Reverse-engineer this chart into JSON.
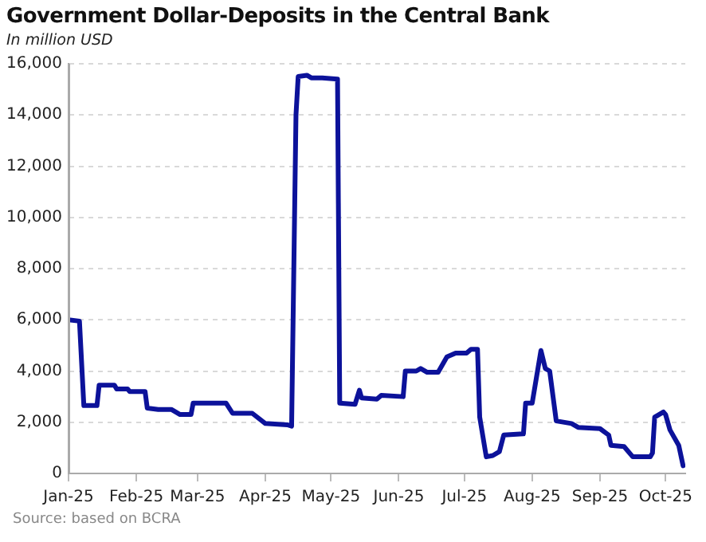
{
  "chart_data": {
    "type": "line",
    "title": "Government Dollar-Deposits in the Central Bank",
    "subtitle": "In million USD",
    "annotations": [
      "Source: based on BCRA"
    ],
    "x": [
      "2025-01-01",
      "2025-01-06",
      "2025-01-08",
      "2025-01-14",
      "2025-01-15",
      "2025-01-22",
      "2025-01-23",
      "2025-01-28",
      "2025-01-29",
      "2025-02-05",
      "2025-02-06",
      "2025-02-11",
      "2025-02-17",
      "2025-02-21",
      "2025-02-26",
      "2025-02-27",
      "2025-03-14",
      "2025-03-17",
      "2025-03-26",
      "2025-04-01",
      "2025-04-11",
      "2025-04-13",
      "2025-04-15",
      "2025-04-16",
      "2025-04-20",
      "2025-04-22",
      "2025-04-27",
      "2025-05-04",
      "2025-05-05",
      "2025-05-12",
      "2025-05-14",
      "2025-05-15",
      "2025-05-22",
      "2025-05-24",
      "2025-06-03",
      "2025-06-04",
      "2025-06-09",
      "2025-06-11",
      "2025-06-14",
      "2025-06-19",
      "2025-06-23",
      "2025-06-27",
      "2025-07-02",
      "2025-07-04",
      "2025-07-07",
      "2025-07-08",
      "2025-07-11",
      "2025-07-14",
      "2025-07-17",
      "2025-07-19",
      "2025-07-28",
      "2025-07-29",
      "2025-08-01",
      "2025-08-05",
      "2025-08-07",
      "2025-08-09",
      "2025-08-12",
      "2025-08-19",
      "2025-08-22",
      "2025-09-01",
      "2025-09-05",
      "2025-09-06",
      "2025-09-12",
      "2025-09-16",
      "2025-09-24",
      "2025-09-25",
      "2025-09-26",
      "2025-09-30",
      "2025-10-01",
      "2025-10-03",
      "2025-10-07",
      "2025-10-09"
    ],
    "series": [
      {
        "color": "#0c129a",
        "values": [
          6000,
          5950,
          2650,
          2650,
          3450,
          3450,
          3300,
          3300,
          3200,
          3200,
          2550,
          2500,
          2500,
          2300,
          2300,
          2750,
          2750,
          2350,
          2350,
          1950,
          1900,
          1850,
          14000,
          15500,
          15550,
          15450,
          15450,
          15400,
          2750,
          2700,
          3250,
          2950,
          2900,
          3050,
          3000,
          4000,
          4000,
          4100,
          3950,
          3950,
          4550,
          4700,
          4700,
          4850,
          4850,
          2200,
          650,
          700,
          850,
          1500,
          1550,
          2750,
          2750,
          4800,
          4100,
          4000,
          2050,
          1950,
          1800,
          1750,
          1500,
          1100,
          1050,
          650,
          650,
          800,
          2200,
          2400,
          2300,
          1700,
          1100,
          300
        ]
      }
    ],
    "xlim": [
      "2025-01-01",
      "2025-10-10"
    ],
    "xticks": [
      {
        "value": "2025-01-01",
        "label": "Jan-25"
      },
      {
        "value": "2025-02-01",
        "label": "Feb-25"
      },
      {
        "value": "2025-03-01",
        "label": "Mar-25"
      },
      {
        "value": "2025-04-01",
        "label": "Apr-25"
      },
      {
        "value": "2025-05-01",
        "label": "May-25"
      },
      {
        "value": "2025-06-01",
        "label": "Jun-25"
      },
      {
        "value": "2025-07-01",
        "label": "Jul-25"
      },
      {
        "value": "2025-08-01",
        "label": "Aug-25"
      },
      {
        "value": "2025-09-01",
        "label": "Sep-25"
      },
      {
        "value": "2025-10-01",
        "label": "Oct-25"
      }
    ],
    "ylim": [
      0,
      16000
    ],
    "yticks": [
      0,
      {
        "value": 2000,
        "label": "2,000"
      },
      {
        "value": 4000,
        "label": "4,000"
      },
      {
        "value": 6000,
        "label": "6,000"
      },
      {
        "value": 8000,
        "label": "8,000"
      },
      {
        "value": 10000,
        "label": "10,000"
      },
      {
        "value": 12000,
        "label": "12,000"
      },
      {
        "value": 14000,
        "label": "14,000"
      },
      {
        "value": 16000,
        "label": "16,000"
      }
    ],
    "grid": "y",
    "legend": false,
    "marker": "none",
    "line_style": "solid"
  }
}
